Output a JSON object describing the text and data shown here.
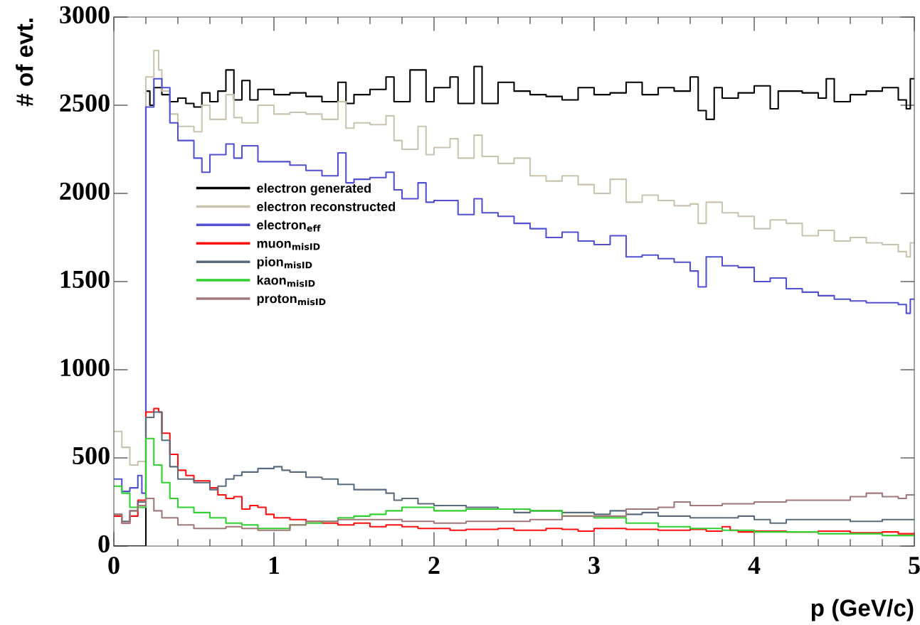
{
  "chart_data": {
    "type": "step",
    "xlabel": "p (GeV/c)",
    "ylabel": "# of evt.",
    "xlim": [
      0,
      5
    ],
    "xticks": [
      0,
      1,
      2,
      3,
      4,
      5
    ],
    "ylim": [
      0,
      3000
    ],
    "yticks": [
      0,
      500,
      1000,
      1500,
      2000,
      2500,
      3000
    ],
    "grid": false,
    "legend": "center left",
    "series": [
      {
        "name": "electron generated",
        "color": "#000000",
        "x": [
          0,
          0.2,
          0.225,
          0.25,
          0.3,
          0.35,
          0.4,
          0.45,
          0.5,
          0.55,
          0.6,
          0.65,
          0.7,
          0.75,
          0.8,
          0.85,
          0.9,
          1.0,
          1.1,
          1.2,
          1.3,
          1.4,
          1.45,
          1.5,
          1.6,
          1.7,
          1.75,
          1.85,
          1.95,
          2.0,
          2.1,
          2.15,
          2.25,
          2.3,
          2.4,
          2.5,
          2.6,
          2.7,
          2.8,
          2.9,
          3.0,
          3.1,
          3.2,
          3.3,
          3.4,
          3.5,
          3.6,
          3.65,
          3.7,
          3.75,
          3.8,
          3.9,
          4.0,
          4.1,
          4.15,
          4.3,
          4.4,
          4.45,
          4.5,
          4.6,
          4.7,
          4.8,
          4.9,
          4.95,
          4.975,
          5
        ],
        "values": [
          0,
          2580,
          2500,
          2600,
          2560,
          2520,
          2540,
          2510,
          2490,
          2570,
          2520,
          2580,
          2700,
          2530,
          2640,
          2530,
          2590,
          2560,
          2570,
          2550,
          2520,
          2630,
          2510,
          2560,
          2590,
          2660,
          2520,
          2700,
          2520,
          2600,
          2660,
          2510,
          2720,
          2510,
          2630,
          2580,
          2560,
          2550,
          2530,
          2600,
          2560,
          2570,
          2630,
          2560,
          2600,
          2580,
          2660,
          2470,
          2420,
          2600,
          2540,
          2570,
          2610,
          2480,
          2580,
          2570,
          2540,
          2650,
          2520,
          2560,
          2580,
          2600,
          2530,
          2480,
          2650,
          2650
        ]
      },
      {
        "name": "electron reconstructed",
        "color": "#c8c4b0",
        "x": [
          0,
          0.05,
          0.1,
          0.15,
          0.2,
          0.25,
          0.28,
          0.3,
          0.35,
          0.4,
          0.5,
          0.55,
          0.6,
          0.7,
          0.75,
          0.8,
          0.9,
          1.0,
          1.1,
          1.2,
          1.3,
          1.4,
          1.45,
          1.5,
          1.6,
          1.7,
          1.75,
          1.8,
          1.9,
          1.95,
          2.0,
          2.1,
          2.15,
          2.25,
          2.3,
          2.4,
          2.5,
          2.6,
          2.7,
          2.8,
          2.9,
          3.0,
          3.1,
          3.2,
          3.3,
          3.4,
          3.5,
          3.6,
          3.65,
          3.7,
          3.8,
          3.9,
          4.0,
          4.1,
          4.2,
          4.3,
          4.4,
          4.5,
          4.6,
          4.7,
          4.8,
          4.9,
          4.95,
          4.975,
          5
        ],
        "values": [
          650,
          560,
          460,
          480,
          2660,
          2810,
          2700,
          2580,
          2450,
          2380,
          2350,
          2500,
          2420,
          2560,
          2430,
          2400,
          2500,
          2450,
          2460,
          2450,
          2420,
          2520,
          2370,
          2400,
          2390,
          2440,
          2300,
          2250,
          2380,
          2220,
          2260,
          2310,
          2200,
          2330,
          2210,
          2170,
          2200,
          2100,
          2070,
          2100,
          2050,
          2000,
          2080,
          1950,
          1990,
          1960,
          1930,
          1940,
          1830,
          1950,
          1890,
          1870,
          1800,
          1850,
          1830,
          1760,
          1790,
          1730,
          1750,
          1720,
          1710,
          1670,
          1640,
          1720,
          1720
        ]
      },
      {
        "name": "electron$_{eff}$",
        "color": "#5050d0",
        "x": [
          0,
          0.05,
          0.1,
          0.15,
          0.175,
          0.2,
          0.25,
          0.3,
          0.35,
          0.4,
          0.5,
          0.55,
          0.6,
          0.7,
          0.75,
          0.8,
          0.9,
          1.0,
          1.1,
          1.2,
          1.3,
          1.4,
          1.45,
          1.5,
          1.6,
          1.7,
          1.75,
          1.8,
          1.9,
          1.95,
          2.0,
          2.1,
          2.15,
          2.25,
          2.3,
          2.4,
          2.5,
          2.6,
          2.7,
          2.8,
          2.9,
          3.0,
          3.1,
          3.2,
          3.3,
          3.4,
          3.5,
          3.6,
          3.65,
          3.7,
          3.8,
          3.9,
          4.0,
          4.1,
          4.2,
          4.3,
          4.4,
          4.5,
          4.6,
          4.7,
          4.8,
          4.9,
          4.95,
          4.975,
          5
        ],
        "values": [
          380,
          310,
          330,
          400,
          300,
          2490,
          2650,
          2600,
          2400,
          2300,
          2200,
          2120,
          2220,
          2280,
          2200,
          2270,
          2180,
          2180,
          2160,
          2130,
          2100,
          2230,
          2060,
          2080,
          2090,
          2120,
          2020,
          1970,
          2060,
          1950,
          1960,
          1960,
          1880,
          1970,
          1890,
          1870,
          1830,
          1800,
          1750,
          1780,
          1730,
          1710,
          1760,
          1640,
          1650,
          1630,
          1610,
          1560,
          1470,
          1640,
          1590,
          1580,
          1500,
          1520,
          1460,
          1440,
          1420,
          1400,
          1390,
          1380,
          1380,
          1370,
          1320,
          1400,
          1400
        ]
      },
      {
        "name": "muon$_{misID}$",
        "color": "#ff1010",
        "x": [
          0,
          0.05,
          0.1,
          0.15,
          0.2,
          0.25,
          0.28,
          0.3,
          0.35,
          0.4,
          0.45,
          0.5,
          0.6,
          0.65,
          0.7,
          0.75,
          0.8,
          0.85,
          0.9,
          0.95,
          1.0,
          1.1,
          1.2,
          1.3,
          1.4,
          1.5,
          1.6,
          1.7,
          1.8,
          1.9,
          2.0,
          2.1,
          2.2,
          2.4,
          2.5,
          2.6,
          2.7,
          2.8,
          2.9,
          3.0,
          3.2,
          3.4,
          3.6,
          3.7,
          3.8,
          3.85,
          3.9,
          4.0,
          4.2,
          4.4,
          4.6,
          4.8,
          4.9,
          5
        ],
        "values": [
          170,
          130,
          170,
          260,
          760,
          780,
          760,
          640,
          520,
          430,
          400,
          370,
          330,
          290,
          270,
          280,
          210,
          230,
          220,
          180,
          160,
          150,
          140,
          130,
          120,
          130,
          110,
          120,
          110,
          100,
          100,
          90,
          95,
          100,
          90,
          90,
          100,
          95,
          85,
          100,
          95,
          90,
          95,
          85,
          110,
          90,
          80,
          85,
          80,
          85,
          75,
          80,
          70,
          70
        ]
      },
      {
        "name": "pion$_{misID}$",
        "color": "#5a6c7c",
        "x": [
          0,
          0.05,
          0.1,
          0.15,
          0.2,
          0.25,
          0.3,
          0.35,
          0.4,
          0.5,
          0.6,
          0.65,
          0.7,
          0.75,
          0.8,
          0.9,
          1.0,
          1.05,
          1.1,
          1.2,
          1.3,
          1.4,
          1.5,
          1.6,
          1.7,
          1.75,
          1.8,
          1.9,
          2.0,
          2.2,
          2.4,
          2.5,
          2.6,
          2.8,
          3.0,
          3.1,
          3.2,
          3.3,
          3.4,
          3.6,
          3.8,
          3.9,
          4.0,
          4.1,
          4.2,
          4.4,
          4.5,
          4.6,
          4.8,
          5
        ],
        "values": [
          180,
          140,
          200,
          250,
          730,
          760,
          600,
          450,
          380,
          360,
          320,
          340,
          380,
          400,
          420,
          440,
          450,
          430,
          420,
          390,
          380,
          350,
          320,
          320,
          300,
          260,
          270,
          240,
          230,
          220,
          210,
          190,
          200,
          190,
          180,
          200,
          180,
          190,
          170,
          160,
          160,
          170,
          150,
          130,
          150,
          150,
          150,
          140,
          150,
          150
        ]
      },
      {
        "name": "kaon$_{misID}$",
        "color": "#30d030",
        "x": [
          0,
          0.05,
          0.1,
          0.15,
          0.2,
          0.25,
          0.3,
          0.35,
          0.4,
          0.5,
          0.6,
          0.7,
          0.8,
          0.9,
          1.0,
          1.1,
          1.2,
          1.3,
          1.4,
          1.5,
          1.6,
          1.7,
          1.8,
          1.9,
          2.0,
          2.2,
          2.4,
          2.6,
          2.8,
          3.0,
          3.2,
          3.4,
          3.6,
          3.8,
          4.0,
          4.2,
          4.4,
          4.6,
          4.8,
          4.9,
          5
        ],
        "values": [
          340,
          300,
          220,
          220,
          610,
          460,
          360,
          270,
          220,
          190,
          160,
          130,
          120,
          100,
          100,
          120,
          130,
          140,
          160,
          170,
          180,
          200,
          220,
          220,
          200,
          210,
          210,
          200,
          170,
          160,
          130,
          110,
          100,
          90,
          80,
          80,
          70,
          70,
          60,
          60,
          60
        ]
      },
      {
        "name": "proton$_{misID}$",
        "color": "#a07878",
        "x": [
          0,
          0.05,
          0.1,
          0.15,
          0.2,
          0.25,
          0.3,
          0.4,
          0.5,
          0.6,
          0.7,
          0.8,
          0.9,
          1.0,
          1.1,
          1.2,
          1.4,
          1.6,
          1.8,
          2.0,
          2.2,
          2.4,
          2.6,
          2.8,
          3.0,
          3.2,
          3.4,
          3.5,
          3.6,
          3.8,
          4.0,
          4.2,
          4.4,
          4.6,
          4.7,
          4.8,
          4.9,
          4.95,
          5
        ],
        "values": [
          180,
          130,
          200,
          230,
          270,
          200,
          160,
          120,
          100,
          100,
          110,
          100,
          90,
          90,
          120,
          140,
          150,
          150,
          140,
          130,
          140,
          140,
          150,
          170,
          170,
          210,
          220,
          250,
          230,
          240,
          250,
          260,
          260,
          280,
          300,
          280,
          270,
          290,
          290
        ]
      }
    ]
  }
}
